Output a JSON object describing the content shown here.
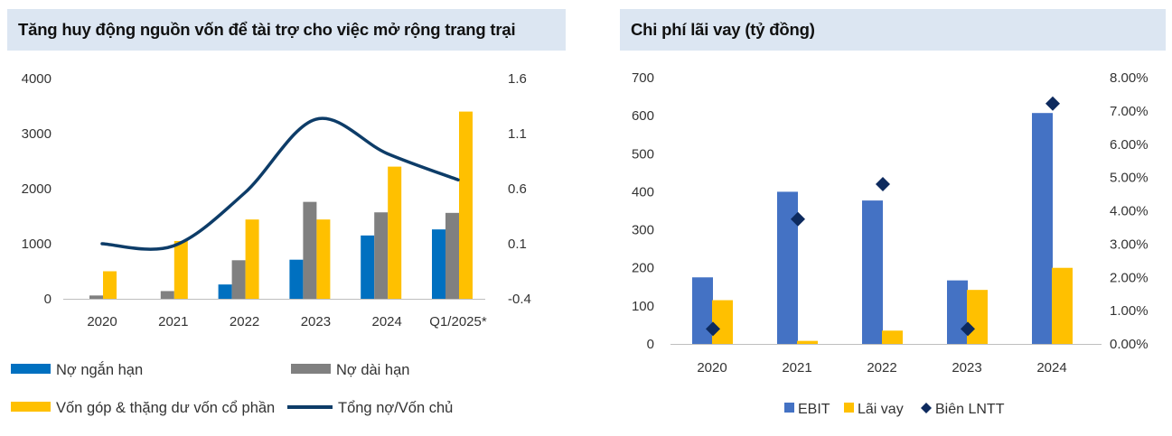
{
  "colors": {
    "header_bg": "#dce6f2",
    "short_term_debt": "#0070c0",
    "long_term_debt": "#808080",
    "equity": "#ffc000",
    "debt_equity_line": "#0d3c68",
    "ebit": "#4472c4",
    "interest": "#ffc000",
    "margin": "#0d2a5e"
  },
  "chart_data": [
    {
      "type": "bar",
      "title": "Tăng huy động nguồn vốn để tài trợ cho việc mở rộng trang trại",
      "categories": [
        "2020",
        "2021",
        "2022",
        "2023",
        "2024",
        "Q1/2025*"
      ],
      "ylim": [
        0,
        4000
      ],
      "y_ticks": [
        "0",
        "1000",
        "2000",
        "3000",
        "4000"
      ],
      "y2lim": [
        -0.4,
        1.6
      ],
      "y2_ticks": [
        "-0.4",
        "0.1",
        "0.6",
        "1.1",
        "1.6"
      ],
      "grid": false,
      "legend_position": "bottom",
      "series": [
        {
          "name": "Nợ ngắn hạn",
          "kind": "bar",
          "color": "#0070c0",
          "values": [
            0,
            0,
            260,
            710,
            1150,
            1260
          ]
        },
        {
          "name": "Nợ dài hạn",
          "kind": "bar",
          "color": "#808080",
          "values": [
            60,
            140,
            700,
            1760,
            1570,
            1560
          ]
        },
        {
          "name": "Vốn góp & thặng dư vốn cổ phần",
          "kind": "bar",
          "color": "#ffc000",
          "values": [
            500,
            1050,
            1440,
            1440,
            2400,
            3400
          ]
        },
        {
          "name": "Tổng nợ/Vốn chủ",
          "kind": "line",
          "axis": "secondary",
          "color": "#0d3c68",
          "values": [
            0.1,
            0.08,
            0.56,
            1.23,
            0.92,
            0.68
          ]
        }
      ]
    },
    {
      "type": "bar",
      "title": "Chi phí lãi vay (tỷ đồng)",
      "categories": [
        "2020",
        "2021",
        "2022",
        "2023",
        "2024"
      ],
      "ylim": [
        0,
        700
      ],
      "y_ticks": [
        "0",
        "100",
        "200",
        "300",
        "400",
        "500",
        "600",
        "700"
      ],
      "y2lim": [
        0,
        0.08
      ],
      "y2_ticks": [
        "0.00%",
        "1.00%",
        "2.00%",
        "3.00%",
        "4.00%",
        "5.00%",
        "6.00%",
        "7.00%",
        "8.00%"
      ],
      "grid": false,
      "legend_position": "bottom",
      "series": [
        {
          "name": "EBIT",
          "kind": "bar",
          "color": "#4472c4",
          "values": [
            175,
            400,
            377,
            167,
            607
          ]
        },
        {
          "name": "Lãi vay",
          "kind": "bar",
          "color": "#ffc000",
          "values": [
            115,
            8,
            35,
            142,
            200
          ]
        },
        {
          "name": "Biên LNTT",
          "kind": "marker",
          "axis": "secondary",
          "color": "#0d2a5e",
          "values": [
            0.0045,
            0.0375,
            0.048,
            0.0045,
            0.0722
          ]
        }
      ]
    }
  ]
}
